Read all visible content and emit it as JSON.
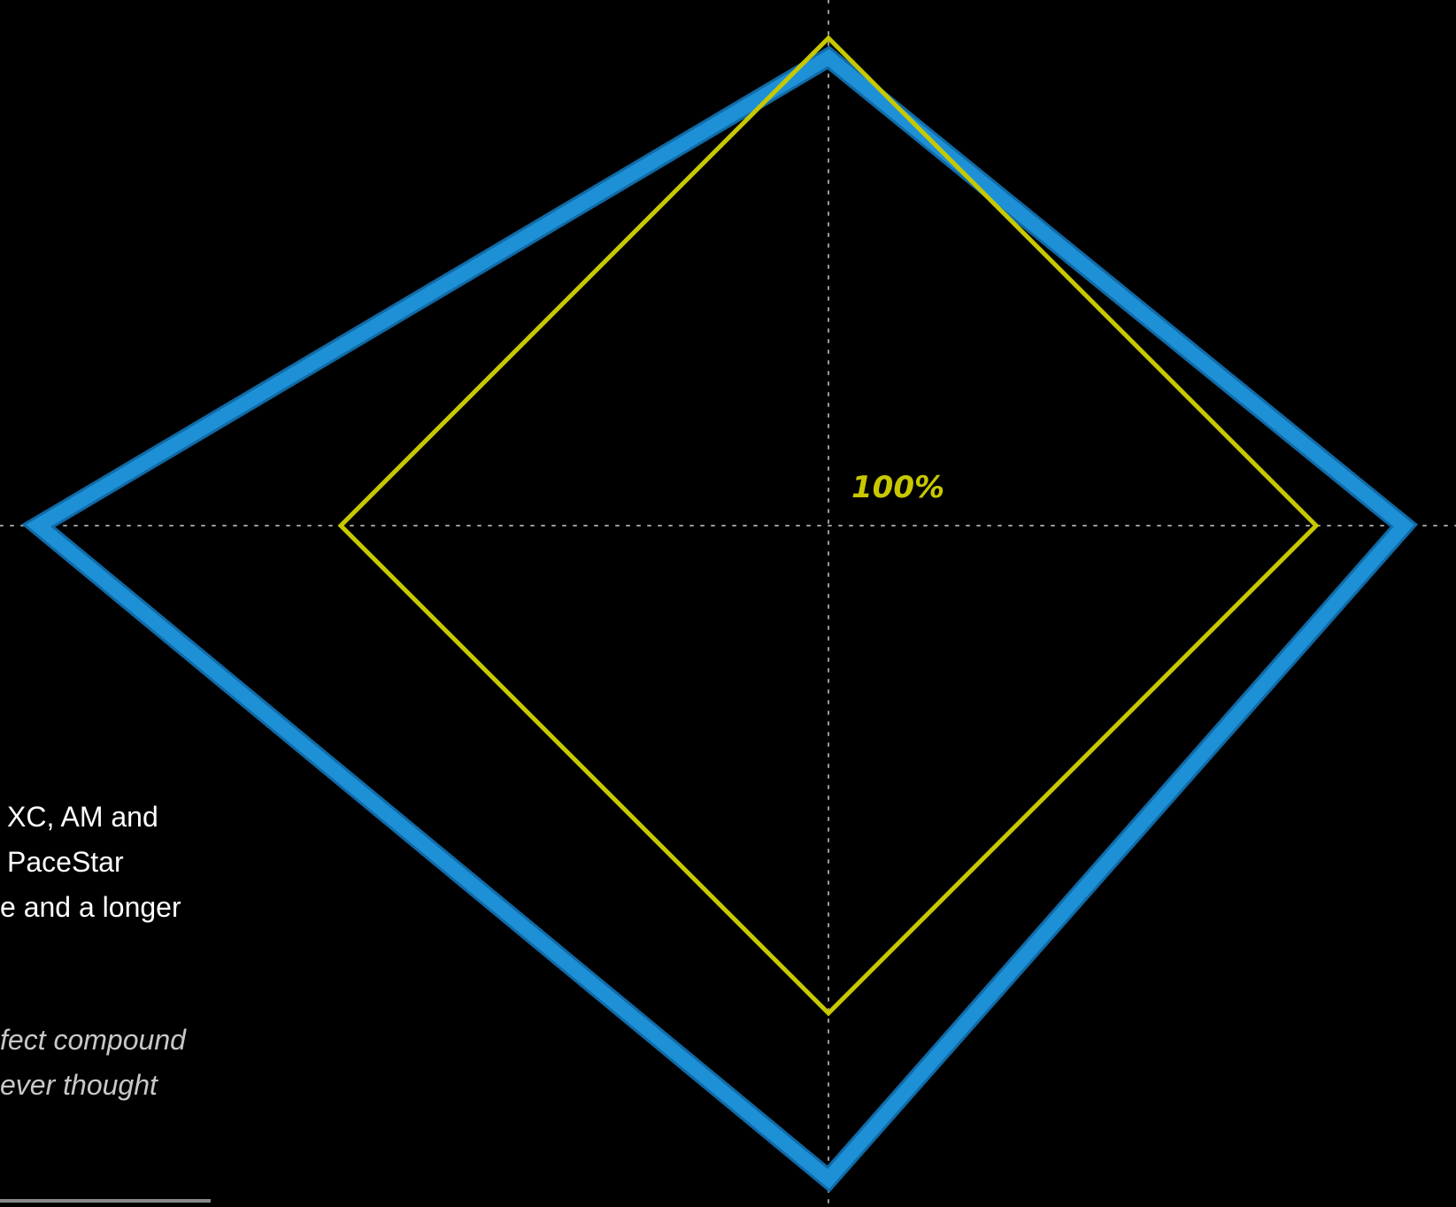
{
  "colors": {
    "background": "#000000",
    "axis": "#9a9a9a",
    "reference": "#c8c800",
    "product": "#1e90d6",
    "product_edge": "#106aa6"
  },
  "chart_data": {
    "type": "radar",
    "axes": [
      "top",
      "right",
      "bottom",
      "left"
    ],
    "grid": "dotted crosshair",
    "series": [
      {
        "role": "reference",
        "values": [
          1.0,
          1.0,
          1.0,
          1.0
        ]
      },
      {
        "role": "product",
        "values": [
          0.96,
          1.18,
          1.34,
          1.62
        ]
      }
    ],
    "reference_label": "100%"
  },
  "text": {
    "lines": [
      "XC, AM and",
      "PaceStar",
      "e and a longer"
    ],
    "quote_lines": [
      "fect compound",
      "ever thought"
    ]
  }
}
